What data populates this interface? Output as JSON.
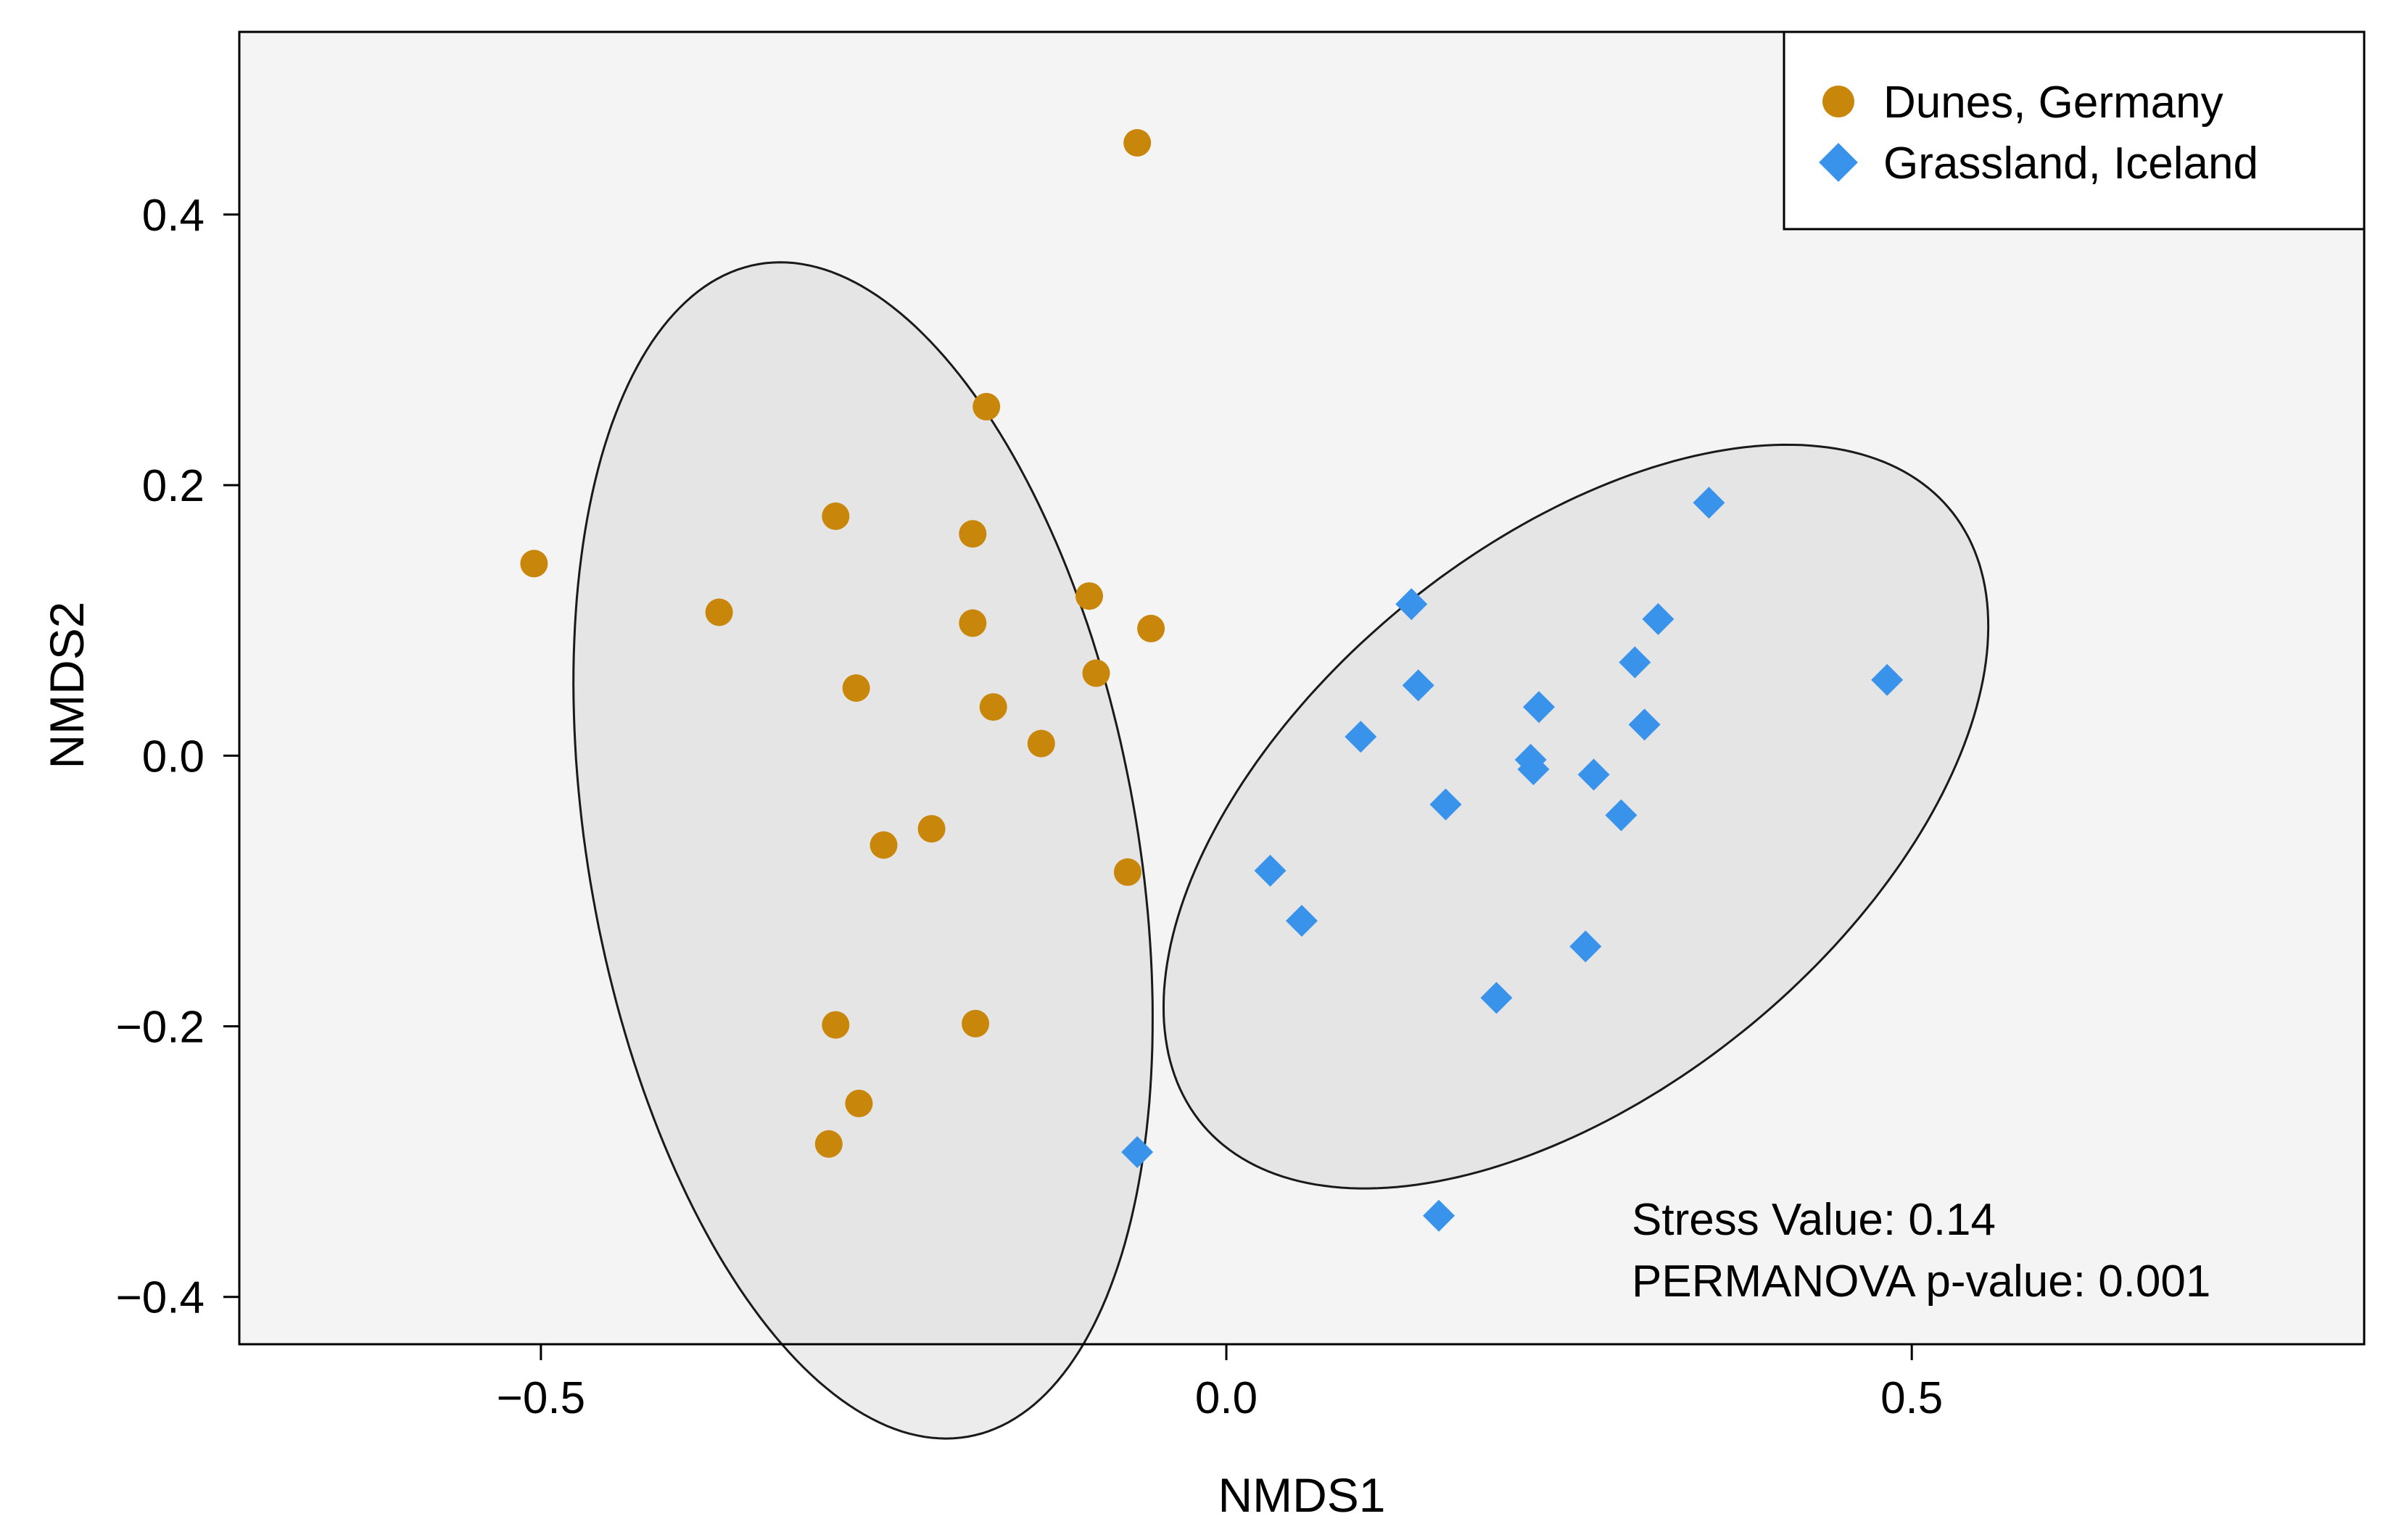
{
  "chart_data": {
    "type": "scatter",
    "title": "",
    "xlabel": "NMDS1",
    "ylabel": "NMDS2",
    "xlim": [
      -0.72,
      0.83
    ],
    "ylim": [
      -0.435,
      0.535
    ],
    "x_ticks": [
      -0.5,
      0.0,
      0.5
    ],
    "x_tick_labels": [
      "−0.5",
      "0.0",
      "0.5"
    ],
    "y_ticks": [
      -0.4,
      -0.2,
      0.0,
      0.2,
      0.4
    ],
    "y_tick_labels": [
      "−0.4",
      "−0.2",
      "0.0",
      "0.2",
      "0.4"
    ],
    "grid": false,
    "panel_background": "#f4f4f4",
    "legend_position": "top-right",
    "series": [
      {
        "name": "Dunes, Germany",
        "marker": "circle",
        "color": "#c8860a",
        "points": [
          [
            -0.065,
            0.453
          ],
          [
            -0.175,
            0.258
          ],
          [
            -0.285,
            0.177
          ],
          [
            -0.185,
            0.164
          ],
          [
            -0.505,
            0.142
          ],
          [
            -0.1,
            0.118
          ],
          [
            -0.37,
            0.106
          ],
          [
            -0.185,
            0.098
          ],
          [
            -0.055,
            0.094
          ],
          [
            -0.095,
            0.061
          ],
          [
            -0.27,
            0.05
          ],
          [
            -0.17,
            0.036
          ],
          [
            -0.135,
            0.009
          ],
          [
            -0.25,
            -0.066
          ],
          [
            -0.215,
            -0.054
          ],
          [
            -0.072,
            -0.086
          ],
          [
            -0.285,
            -0.199
          ],
          [
            -0.183,
            -0.198
          ],
          [
            -0.268,
            -0.257
          ],
          [
            -0.29,
            -0.287
          ]
        ],
        "ellipse": {
          "cx": -0.265,
          "cy": -0.07,
          "rx": 0.2,
          "ry": 0.44,
          "rotation_deg": 10
        }
      },
      {
        "name": "Grassland, Iceland",
        "marker": "diamond",
        "color": "#3a93ea",
        "points": [
          [
            0.352,
            0.187
          ],
          [
            0.135,
            0.112
          ],
          [
            0.315,
            0.101
          ],
          [
            0.482,
            0.056
          ],
          [
            0.298,
            0.069
          ],
          [
            0.14,
            0.052
          ],
          [
            0.228,
            0.036
          ],
          [
            0.098,
            0.014
          ],
          [
            0.305,
            0.023
          ],
          [
            0.222,
            -0.003
          ],
          [
            0.224,
            -0.01
          ],
          [
            0.268,
            -0.014
          ],
          [
            0.16,
            -0.036
          ],
          [
            0.288,
            -0.044
          ],
          [
            0.032,
            -0.085
          ],
          [
            0.055,
            -0.122
          ],
          [
            0.262,
            -0.141
          ],
          [
            0.197,
            -0.179
          ],
          [
            -0.065,
            -0.293
          ],
          [
            0.155,
            -0.34
          ]
        ],
        "ellipse": {
          "cx": 0.255,
          "cy": -0.045,
          "rx": 0.355,
          "ry": 0.2,
          "rotation_deg": 40
        }
      }
    ],
    "annotations": [
      "Stress Value: 0.14",
      "PERMANOVA p-value: 0.001"
    ]
  }
}
